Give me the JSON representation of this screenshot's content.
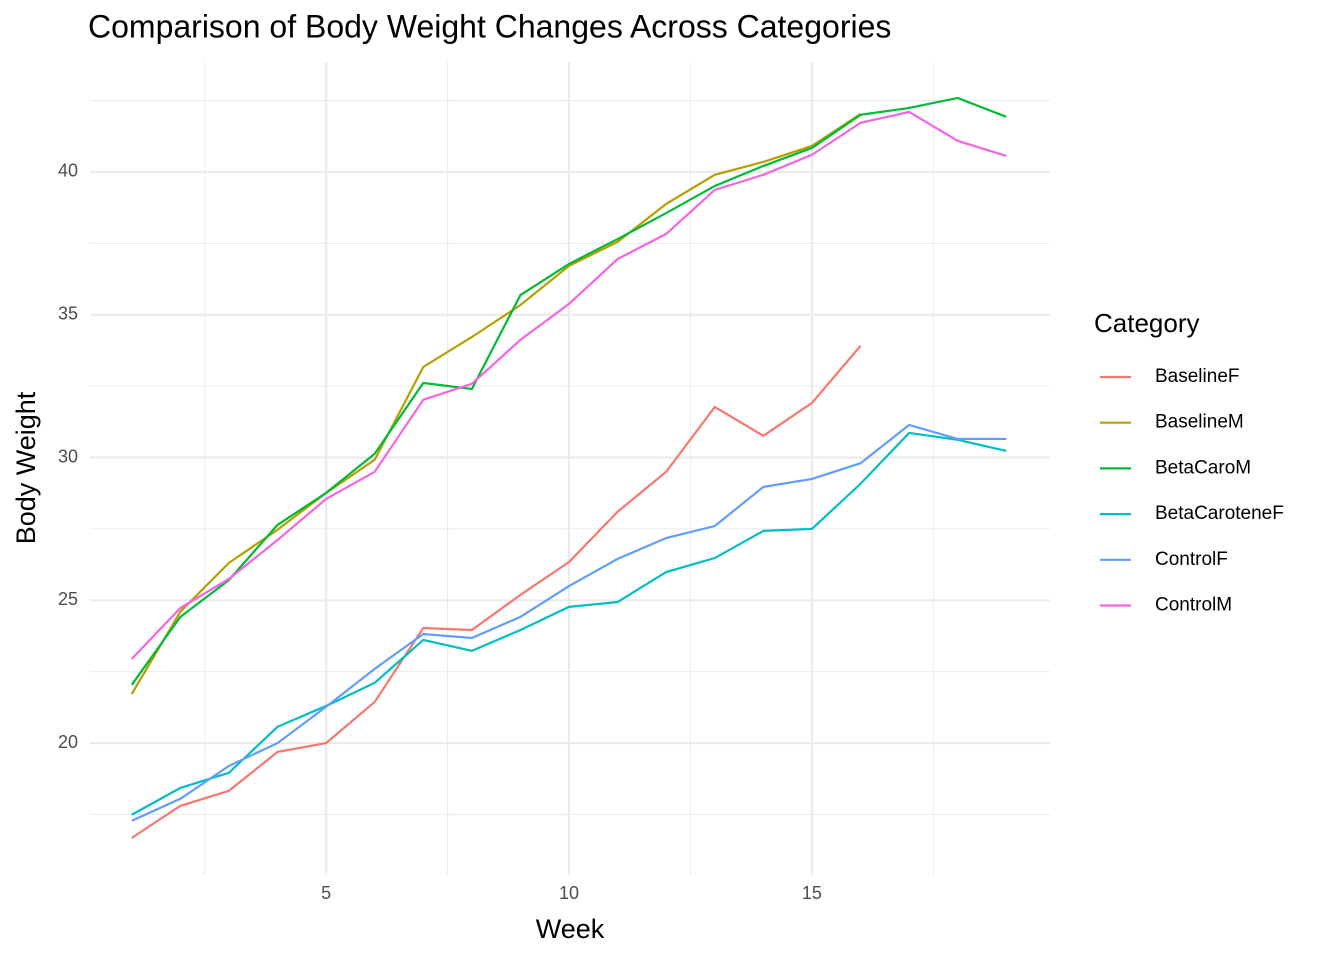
{
  "chart_data": {
    "type": "line",
    "title": "Comparison of Body Weight Changes Across Categories",
    "x_label": "Week",
    "y_label": "Body Weight",
    "legend_title": "Category",
    "x": [
      1,
      2,
      3,
      4,
      5,
      6,
      7,
      8,
      9,
      10,
      11,
      12,
      13,
      14,
      15,
      16,
      17,
      18,
      19
    ],
    "series": [
      {
        "name": "BaselineF",
        "color": "#F8766D",
        "values": [
          16.68,
          17.8,
          18.33,
          19.69,
          20.0,
          21.44,
          24.03,
          23.96,
          25.19,
          26.34,
          28.1,
          29.5,
          31.77,
          30.76,
          31.91,
          33.91,
          null,
          null,
          null
        ]
      },
      {
        "name": "BaselineM",
        "color": "#B79F00",
        "values": [
          21.72,
          24.6,
          26.31,
          27.47,
          28.76,
          29.92,
          33.17,
          34.22,
          35.34,
          36.71,
          37.55,
          38.88,
          39.9,
          40.35,
          40.91,
          42.03,
          null,
          null,
          null
        ]
      },
      {
        "name": "BetaCaroM",
        "color": "#00BA38",
        "values": [
          22.04,
          24.42,
          25.71,
          27.64,
          28.76,
          30.13,
          32.61,
          32.4,
          35.69,
          36.78,
          37.65,
          38.56,
          39.51,
          40.21,
          40.84,
          42.0,
          42.24,
          42.59,
          41.93
        ]
      },
      {
        "name": "BetaCaroteneF",
        "color": "#00BFC4",
        "values": [
          17.49,
          18.43,
          18.96,
          20.57,
          21.3,
          22.11,
          23.61,
          23.23,
          23.96,
          24.77,
          24.94,
          25.99,
          26.48,
          27.43,
          27.5,
          29.08,
          30.86,
          30.62,
          30.23
        ]
      },
      {
        "name": "ControlF",
        "color": "#619CFF",
        "values": [
          17.28,
          18.05,
          19.2,
          20.0,
          21.27,
          22.6,
          23.82,
          23.68,
          24.42,
          25.5,
          26.45,
          27.18,
          27.6,
          28.97,
          29.25,
          29.8,
          31.14,
          30.65,
          30.65
        ]
      },
      {
        "name": "ControlM",
        "color": "#F564E3",
        "values": [
          22.95,
          24.73,
          25.75,
          27.11,
          28.55,
          29.5,
          32.02,
          32.58,
          34.12,
          35.38,
          36.95,
          37.83,
          39.37,
          39.9,
          40.6,
          41.72,
          42.1,
          41.09,
          40.56
        ]
      }
    ],
    "xlim": [
      0.14,
      19.9
    ],
    "ylim": [
      15.38,
      43.85
    ],
    "xticks": [
      5,
      10,
      15
    ],
    "yticks": [
      20,
      25,
      30,
      35,
      40
    ],
    "x_minor_ticks": [
      2.5,
      7.5,
      12.5,
      17.5
    ],
    "y_minor_ticks": [
      17.5,
      22.5,
      27.5,
      32.5,
      37.5,
      42.5
    ],
    "grid": true,
    "legend": "right"
  }
}
